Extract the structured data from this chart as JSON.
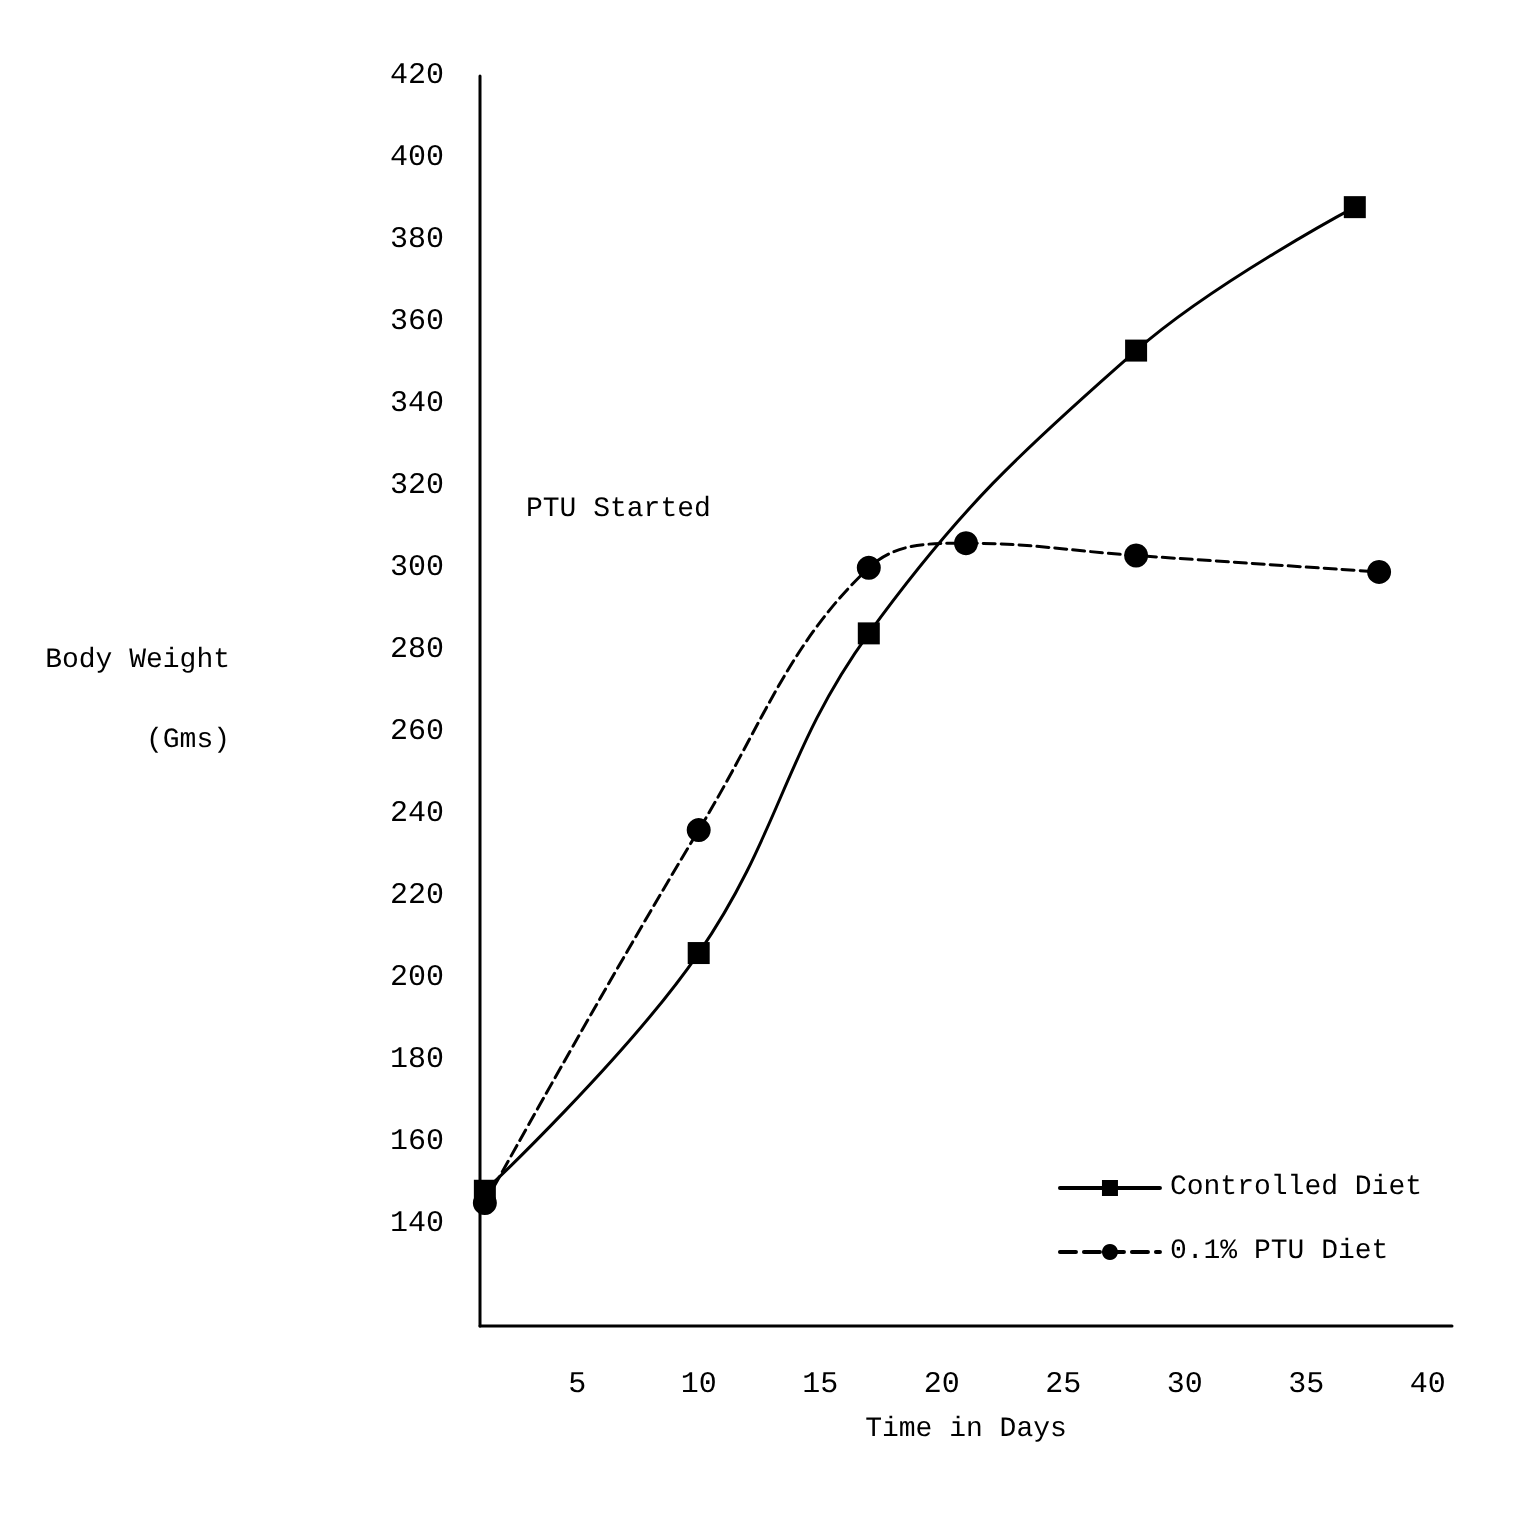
{
  "chart_data": {
    "type": "line",
    "xlabel": "Time in Days",
    "ylabel": "Body Weight\n(Gms)",
    "annotations": [
      "PTU Started"
    ],
    "xlim": [
      1,
      41
    ],
    "xticks": [
      5,
      10,
      15,
      20,
      25,
      30,
      35,
      40
    ],
    "ylim": [
      115,
      420
    ],
    "yticks": [
      140,
      160,
      180,
      200,
      220,
      240,
      260,
      280,
      300,
      320,
      340,
      360,
      380,
      400,
      420
    ],
    "grid": false,
    "legend": "bottom right",
    "series": [
      {
        "name": "Controlled Diet",
        "color": "#000000",
        "marker": "square",
        "line_style": "solid",
        "x": [
          1.2,
          10,
          17,
          28,
          37
        ],
        "values": [
          148,
          206,
          284,
          353,
          388
        ]
      },
      {
        "name": "0.1% PTU Diet",
        "color": "#000000",
        "marker": "circle",
        "line_style": "dashed",
        "x": [
          1.2,
          10,
          17,
          21,
          28,
          38
        ],
        "values": [
          145,
          236,
          300,
          306,
          303,
          299
        ]
      }
    ]
  }
}
